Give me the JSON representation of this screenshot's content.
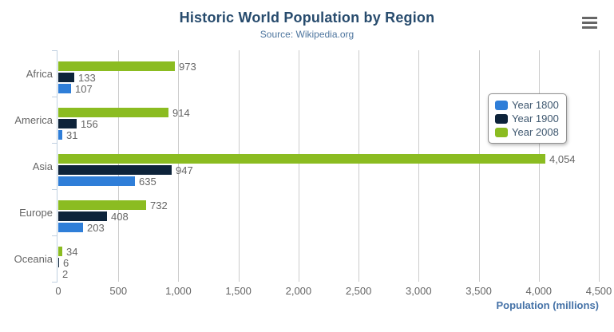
{
  "header": {
    "title": "Historic World Population by Region",
    "subtitle": "Source: Wikipedia.org"
  },
  "icons": {
    "export_menu": "hamburger"
  },
  "ui_colors": {
    "title_text": "#274b6d",
    "subtitle_text": "#4d759e",
    "axis_text": "#666666",
    "axis_title_text": "#4572a7",
    "gridline": "#cccccc",
    "category_axis_line": "#c0d0e0",
    "legend_border": "#909090",
    "export_icon": "#666666"
  },
  "chart_data": {
    "type": "bar",
    "orientation": "horizontal",
    "title": "Historic World Population by Region",
    "subtitle": "Source: Wikipedia.org",
    "categories": [
      "Africa",
      "America",
      "Asia",
      "Europe",
      "Oceania"
    ],
    "series": [
      {
        "name": "Year 1800",
        "color": "#2f7ed8",
        "values": [
          107,
          31,
          635,
          203,
          2
        ]
      },
      {
        "name": "Year 1900",
        "color": "#0d233a",
        "values": [
          133,
          156,
          947,
          408,
          6
        ]
      },
      {
        "name": "Year 2008",
        "color": "#8bbc21",
        "values": [
          973,
          914,
          4054,
          732,
          34
        ]
      }
    ],
    "bar_row_order_top_to_bottom": [
      "Year 2008",
      "Year 1900",
      "Year 1800"
    ],
    "xlabel": "Population (millions)",
    "ylabel": "",
    "xlim": [
      0,
      4500
    ],
    "x_ticks": [
      0,
      500,
      1000,
      1500,
      2000,
      2500,
      3000,
      3500,
      4000,
      4500
    ],
    "x_tick_labels": [
      "0",
      "500",
      "1,000",
      "1,500",
      "2,000",
      "2,500",
      "3,000",
      "3,500",
      "4,000",
      "4,500"
    ],
    "grid": true,
    "data_labels": true,
    "legend_position": "right-middle"
  }
}
